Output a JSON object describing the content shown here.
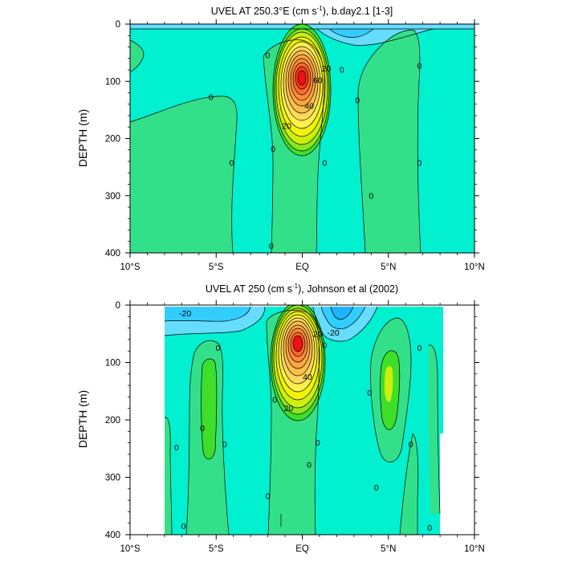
{
  "figure": {
    "panels": [
      {
        "title_main": "UVEL AT 250.3°E (cm s",
        "title_sup": "-1",
        "title_rest": "), b.day2.1 [1-3]"
      },
      {
        "title_main": "UVEL AT 250 (cm s",
        "title_sup": "-1",
        "title_rest": "), Johnson et al (2002)"
      }
    ]
  },
  "colors": {
    "c_neg30": "#1fb4ff",
    "c_neg20": "#33ccff",
    "c_neg10": "#66ddff",
    "c_0": "#00f0d0",
    "c_10": "#33e08a",
    "c_20": "#3ede2a",
    "c_30": "#8ce61e",
    "c_40": "#ccf00c",
    "c_50": "#f2f20a",
    "c_60": "#fff04a",
    "c_70": "#ffd85c",
    "c_80": "#ffbf4a",
    "c_90": "#ffa640",
    "c_100": "#ff8c40",
    "c_110": "#ff6a2a",
    "c_120": "#ff3a1a",
    "c_130": "#f01010"
  },
  "chart_data": [
    {
      "type": "heatmap",
      "title": "UVEL AT 250.3°E (cm s-1), b.day2.1 [1-3]",
      "xlabel": "",
      "ylabel": "DEPTH (m)",
      "x_ticks": [
        "10°S",
        "5°S",
        "EQ",
        "5°N",
        "10°N"
      ],
      "x_tick_values": [
        -10,
        -5,
        0,
        5,
        10
      ],
      "y_ticks": [
        "0",
        "100",
        "200",
        "300",
        "400"
      ],
      "y_tick_values": [
        0,
        100,
        200,
        300,
        400
      ],
      "xlim": [
        -10,
        10
      ],
      "ylim": [
        0,
        400
      ],
      "contour_interval": 10,
      "contour_labels": [
        {
          "text": "0",
          "lat": -2.0,
          "depth": 55
        },
        {
          "text": "0",
          "lat": 2.3,
          "depth": 80
        },
        {
          "text": "0",
          "lat": -5.3,
          "depth": 128
        },
        {
          "text": "0",
          "lat": 3.2,
          "depth": 133
        },
        {
          "text": "0",
          "lat": 6.8,
          "depth": 73
        },
        {
          "text": "0",
          "lat": -1.7,
          "depth": 218
        },
        {
          "text": "0",
          "lat": -4.1,
          "depth": 243
        },
        {
          "text": "0",
          "lat": 1.3,
          "depth": 243
        },
        {
          "text": "0",
          "lat": 6.8,
          "depth": 243
        },
        {
          "text": "0",
          "lat": 4.0,
          "depth": 300
        },
        {
          "text": "0",
          "lat": -1.8,
          "depth": 388
        },
        {
          "text": "20",
          "lat": 1.4,
          "depth": 78
        },
        {
          "text": "20",
          "lat": -0.9,
          "depth": 178
        },
        {
          "text": "40",
          "lat": 0.4,
          "depth": 143
        },
        {
          "text": "60",
          "lat": 0.9,
          "depth": 98
        }
      ],
      "data_range": [
        -30,
        130
      ],
      "jet_core": {
        "lat": 0.0,
        "depth": 95,
        "max": 130
      }
    },
    {
      "type": "heatmap",
      "title": "UVEL AT 250 (cm s-1), Johnson et al (2002)",
      "xlabel": "",
      "ylabel": "DEPTH (m)",
      "x_ticks": [
        "10°S",
        "5°S",
        "EQ",
        "5°N",
        "10°N"
      ],
      "x_tick_values": [
        -10,
        -5,
        0,
        5,
        10
      ],
      "y_ticks": [
        "0",
        "100",
        "200",
        "300",
        "400"
      ],
      "y_tick_values": [
        0,
        100,
        200,
        300,
        400
      ],
      "xlim": [
        -10,
        10
      ],
      "ylim": [
        0,
        400
      ],
      "data_extent_lat": [
        -8,
        8
      ],
      "contour_interval": 10,
      "contour_labels": [
        {
          "text": "-20",
          "lat": -6.8,
          "depth": 15
        },
        {
          "text": "-20",
          "lat": 1.8,
          "depth": 48
        },
        {
          "text": "20",
          "lat": 0.9,
          "depth": 50
        },
        {
          "text": "20",
          "lat": -0.8,
          "depth": 180
        },
        {
          "text": "40",
          "lat": 0.3,
          "depth": 125
        },
        {
          "text": "0",
          "lat": -5.8,
          "depth": 215
        },
        {
          "text": "0",
          "lat": -7.3,
          "depth": 248
        },
        {
          "text": "0",
          "lat": -4.9,
          "depth": 75
        },
        {
          "text": "0",
          "lat": -4.5,
          "depth": 243
        },
        {
          "text": "0",
          "lat": -1.6,
          "depth": 165
        },
        {
          "text": "0",
          "lat": 1.3,
          "depth": 70
        },
        {
          "text": "0",
          "lat": 0.9,
          "depth": 240
        },
        {
          "text": "0",
          "lat": 0.4,
          "depth": 278
        },
        {
          "text": "0",
          "lat": 3.9,
          "depth": 153
        },
        {
          "text": "0",
          "lat": 6.8,
          "depth": 75
        },
        {
          "text": "0",
          "lat": 6.3,
          "depth": 243
        },
        {
          "text": "0",
          "lat": 4.3,
          "depth": 318
        },
        {
          "text": "0",
          "lat": -6.9,
          "depth": 385
        },
        {
          "text": "0",
          "lat": -2.0,
          "depth": 333
        },
        {
          "text": "0",
          "lat": 7.4,
          "depth": 388
        }
      ],
      "data_range": [
        -30,
        100
      ],
      "jet_core": {
        "lat": -0.3,
        "depth": 70,
        "max": 100
      }
    }
  ]
}
